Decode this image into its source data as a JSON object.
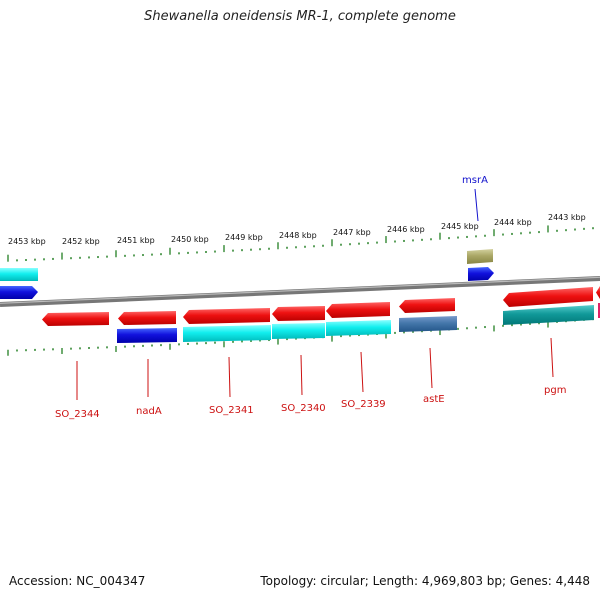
{
  "title": "Shewanella oneidensis MR-1, complete genome",
  "accession": "Accession: NC_004347",
  "genome_info": "Topology: circular; Length: 4,969,803 bp; Genes: 4,448",
  "scale_labels": [
    "2453 kbp",
    "2452 kbp",
    "2451 kbp",
    "2450 kbp",
    "2449 kbp",
    "2448 kbp",
    "2447 kbp",
    "2446 kbp",
    "2445 kbp",
    "2444 kbp",
    "2443 kbp"
  ],
  "gene_labels": {
    "so2344": "SO_2344",
    "nadA": "nadA",
    "so2341": "SO_2341",
    "so2340": "SO_2340",
    "so2339": "SO_2339",
    "astE": "astE",
    "pgm": "pgm",
    "msrA": "msrA"
  },
  "colors": {
    "cds_red": "#ee1111",
    "cds_blue": "#1111dd",
    "cds_cyan": "#11dddd",
    "cds_teal": "#119999",
    "cds_steel": "#4477aa",
    "cds_olive": "#aaa766",
    "backbone": "#888888",
    "tick": "#338833"
  }
}
